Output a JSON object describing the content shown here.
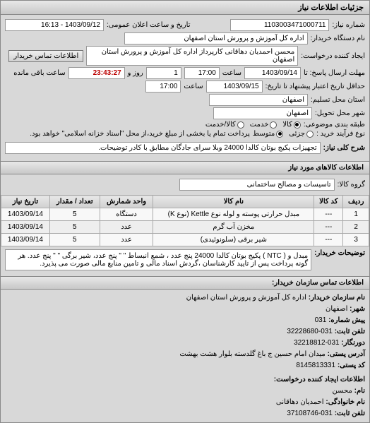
{
  "panel_title": "جزئیات اطلاعات نیاز",
  "request_no_label": "شماره نیاز:",
  "request_no": "1103003471000711",
  "announce_label": "تاریخ و ساعت اعلان عمومی:",
  "announce_value": "1403/09/12 - 16:13",
  "buyer_org_label": "نام دستگاه خریدار:",
  "buyer_org": "اداره کل آموزش و پرورش استان اصفهان",
  "requester_label": "ایجاد کننده درخواست:",
  "requester": "محسن احمدیان دهاقانی کارپرداز اداره کل آموزش و پرورش استان اصفهان",
  "contact_btn": "اطلاعات تماس خریدار",
  "deadline_label": "مهلت ارسال پاسخ: تا",
  "deadline_date": "1403/09/14",
  "time_label": "ساعت",
  "deadline_time": "17:00",
  "days_left": "1",
  "days_unit": "روز و",
  "countdown": "23:43:27",
  "remain_unit": "ساعت باقی مانده",
  "validity_label": "حداقل تاریخ اعتبار پیشنهاد تا تاریخ:",
  "validity_date": "1403/09/15",
  "validity_time": "17:00",
  "province_label": "استان محل تسلیم:",
  "province": "اصفهان",
  "city_label": "شهر محل تحویل:",
  "city": "اصفهان",
  "grade_label": "طبقه بندی موضوعی:",
  "grade_options": {
    "kala": "کالا",
    "khadamat": "خدمت",
    "kala_khadamat": "کالا/خدمت"
  },
  "process_label": "نوع فرآیند خرید :",
  "process_options": {
    "low": "جزئی",
    "mid": "متوسط"
  },
  "process_note": "پرداخت تمام یا بخشی از مبلغ خرید،از محل \"اسناد خزانه اسلامی\" خواهد بود.",
  "need_title_label": "شرح کلی نیاز:",
  "need_title": "تجهیزات پکیج بوتان کالدا 24000 وبلا سرای جادگان مطابق با کادر توضیحات.",
  "items_header": "اطلاعات کالاهای مورد نیاز",
  "group_label": "گروه کالا:",
  "group_value": "تاسیسات و مصالح ساختمانی",
  "table": {
    "headers": [
      "ردیف",
      "کد کالا",
      "نام کالا",
      "واحد شمارش",
      "تعداد / مقدار",
      "تاریخ نیاز"
    ],
    "rows": [
      [
        "1",
        "---",
        "مبدل حرارتی پوسته و لوله نوع Kettle (نوع K)",
        "دستگاه",
        "5",
        "1403/09/14"
      ],
      [
        "2",
        "---",
        "مخزن آب گرم",
        "عدد",
        "5",
        "1403/09/14"
      ],
      [
        "3",
        "---",
        "شیر برقی (سلونوئیدی)",
        "عدد",
        "5",
        "1403/09/14"
      ]
    ]
  },
  "buyer_desc_label": "توضیحات خریدار:",
  "buyer_desc": "مبدل و ( NTC ) پکیج بوتان کالدا 24000 پنج عدد ، شمع انبساط \" \" پنج عدد، شیر برگی \" \" پنج عدد. هر گونه پرداخت پس از تایید کارشناسان ،گردش اسناد مالی و تامین منابع مالی صورت می پذیرد.",
  "contact_header": "اطلاعات تماس سازمان خریدار:",
  "c_org_label": "نام سازمان خریدار:",
  "c_org": "اداره کل آموزش و پرورش استان اصفهان",
  "c_city_label": "شهر:",
  "c_city": "اصفهان",
  "c_prefix_label": "پیش شماره:",
  "c_prefix": "031",
  "c_phone_label": "تلفن ثابت:",
  "c_phone": "031-32228680",
  "c_fax_label": "دورنگار:",
  "c_fax": "031-32218812",
  "c_addr_label": "آدرس پستی:",
  "c_addr": "میدان امام حسین ج باغ گلدسته بلوار هشت بهشت",
  "c_zip_label": "کد پستی:",
  "c_zip": "8145813331",
  "creator_header": "اطلاعات ایجاد کننده درخواست:",
  "c_name_label": "نام:",
  "c_name": "محسن",
  "c_family_label": "نام خانوادگی:",
  "c_family": "احمدیان دهاقانی",
  "c_tel_label": "تلفن ثابت:",
  "c_tel": "031-37108746"
}
